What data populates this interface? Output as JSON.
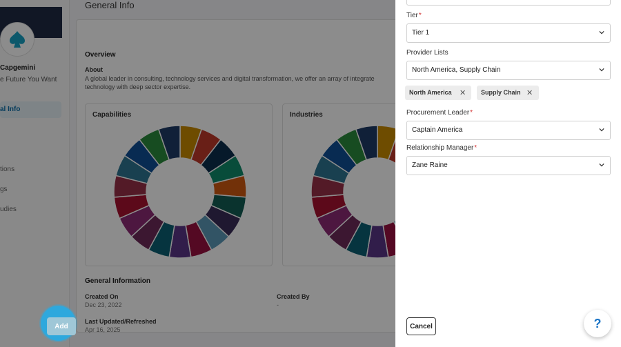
{
  "sidebar": {
    "company_name": "Capgemini",
    "tagline": "e Future You Want",
    "active_item": "al Info",
    "items": [
      "tions",
      "gs",
      "udies"
    ]
  },
  "main": {
    "title": "General Info",
    "overview_label": "Overview",
    "about_label": "About",
    "about_text": "A global leader in consulting, technology services and digital transformation, we offer an array of integrate technology with deep sector expertise.",
    "capabilities_title": "Capabilities",
    "industries_title": "Industries",
    "general_information_label": "General Information",
    "created_on_label": "Created On",
    "created_on_value": "Dec 23, 2022",
    "created_by_label": "Created By",
    "created_by_value": "-",
    "last_updated_label": "Last Updated/Refreshed",
    "last_updated_value": "Apr 16, 2025"
  },
  "panel": {
    "tier_label": "Tier",
    "tier_value": "Tier 1",
    "provider_lists_label": "Provider Lists",
    "provider_lists_value": "North America, Supply Chain",
    "chips": [
      "North America",
      "Supply Chain"
    ],
    "procurement_leader_label": "Procurement Leader",
    "procurement_leader_value": "Captain America",
    "relationship_manager_label": "Relationship Manager",
    "relationship_manager_value": "Zane Raine",
    "cancel_label": "Cancel",
    "add_label": "Add",
    "required_mark": "*"
  },
  "help_label": "?",
  "donut_colors": [
    "#c98a00",
    "#c0392b",
    "#0c2f4d",
    "#0f8a6b",
    "#d05a12",
    "#135e55",
    "#3a2c58",
    "#5c9ab8",
    "#9a1240",
    "#5a3588",
    "#0c5f73",
    "#6e2a5a",
    "#8c2a76",
    "#a81130",
    "#983048",
    "#2f7692",
    "#0f4f95",
    "#2a8a3c",
    "#1e3b66"
  ]
}
